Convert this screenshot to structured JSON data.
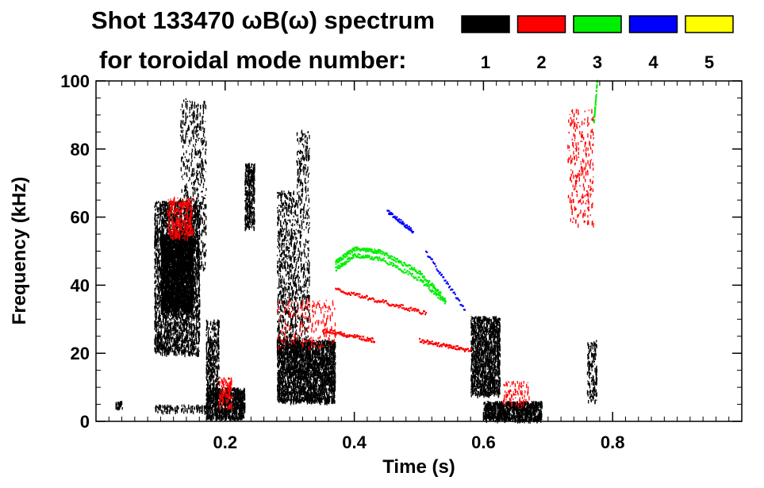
{
  "chart_data": {
    "type": "scatter",
    "title": "Shot 133470 ωB(ω) spectrum",
    "subtitle": "for toroidal mode number:",
    "xlabel": "Time (s)",
    "ylabel": "Frequency (kHz)",
    "xlim": [
      0.0,
      1.0
    ],
    "ylim": [
      0,
      100
    ],
    "x_ticks": [
      0.2,
      0.4,
      0.6,
      0.8
    ],
    "x_tick_labels": [
      "0.2",
      "0.4",
      "0.6",
      "0.8"
    ],
    "y_ticks": [
      0,
      20,
      40,
      60,
      80,
      100
    ],
    "y_tick_labels": [
      "0",
      "20",
      "40",
      "60",
      "80",
      "100"
    ],
    "grid": false,
    "legend_position": "top-right",
    "legend": [
      {
        "label": "1",
        "color": "#000000"
      },
      {
        "label": "2",
        "color": "#ff0000"
      },
      {
        "label": "3",
        "color": "#00ee00"
      },
      {
        "label": "4",
        "color": "#0000ff"
      },
      {
        "label": "5",
        "color": "#ffff00"
      }
    ],
    "series": [
      {
        "name": "1",
        "color": "#000000",
        "regions": [
          {
            "x": [
              0.09,
              0.16
            ],
            "y": [
              20,
              65
            ],
            "density": 3200
          },
          {
            "x": [
              0.1,
              0.15
            ],
            "y": [
              33,
              55
            ],
            "density": 2600
          },
          {
            "x": [
              0.13,
              0.17
            ],
            "y": [
              45,
              95
            ],
            "density": 600
          },
          {
            "x": [
              0.17,
              0.23
            ],
            "y": [
              1,
              10
            ],
            "density": 900
          },
          {
            "x": [
              0.17,
              0.19
            ],
            "y": [
              8,
              30
            ],
            "density": 400
          },
          {
            "x": [
              0.23,
              0.245
            ],
            "y": [
              57,
              76
            ],
            "density": 350
          },
          {
            "x": [
              0.28,
              0.37
            ],
            "y": [
              6,
              24
            ],
            "density": 2600
          },
          {
            "x": [
              0.28,
              0.31
            ],
            "y": [
              20,
              68
            ],
            "density": 700
          },
          {
            "x": [
              0.31,
              0.33
            ],
            "y": [
              20,
              86
            ],
            "density": 450
          },
          {
            "x": [
              0.58,
              0.625
            ],
            "y": [
              8,
              31
            ],
            "density": 1500
          },
          {
            "x": [
              0.6,
              0.69
            ],
            "y": [
              0.5,
              6
            ],
            "density": 1000
          },
          {
            "x": [
              0.76,
              0.775
            ],
            "y": [
              6,
              24
            ],
            "density": 150
          },
          {
            "x": [
              0.03,
              0.04
            ],
            "y": [
              4,
              6
            ],
            "density": 30
          },
          {
            "x": [
              0.09,
              0.17
            ],
            "y": [
              3,
              5
            ],
            "density": 120
          }
        ]
      },
      {
        "name": "2",
        "color": "#ff0000",
        "regions": [
          {
            "x": [
              0.11,
              0.15
            ],
            "y": [
              54,
              66
            ],
            "density": 300
          },
          {
            "x": [
              0.19,
              0.21
            ],
            "y": [
              4,
              13
            ],
            "density": 120
          },
          {
            "x": [
              0.28,
              0.37
            ],
            "y": [
              22,
              36
            ],
            "density": 200
          },
          {
            "x": [
              0.73,
              0.77
            ],
            "y": [
              58,
              92
            ],
            "density": 260
          },
          {
            "x": [
              0.63,
              0.67
            ],
            "y": [
              5,
              12
            ],
            "density": 90
          }
        ],
        "tracks": [
          {
            "x": [
              0.37,
              0.51
            ],
            "y": [
              39,
              32
            ],
            "count": 110
          },
          {
            "x": [
              0.35,
              0.43
            ],
            "y": [
              27,
              24
            ],
            "count": 90
          },
          {
            "x": [
              0.5,
              0.58
            ],
            "y": [
              24,
              21
            ],
            "count": 80
          }
        ]
      },
      {
        "name": "3",
        "color": "#00ee00",
        "tracks": [
          {
            "x": [
              0.37,
              0.4,
              0.44,
              0.5,
              0.54
            ],
            "y": [
              47,
              51,
              50,
              44,
              36
            ],
            "count": 240
          },
          {
            "x": [
              0.37,
              0.4,
              0.44,
              0.5,
              0.54
            ],
            "y": [
              45,
              49,
              48,
              42,
              35
            ],
            "count": 180
          },
          {
            "x": [
              0.77,
              0.775
            ],
            "y": [
              88,
              100
            ],
            "count": 40
          }
        ]
      },
      {
        "name": "4",
        "color": "#0000ff",
        "tracks": [
          {
            "x": [
              0.45,
              0.49
            ],
            "y": [
              62,
              56
            ],
            "count": 60
          },
          {
            "x": [
              0.51,
              0.57
            ],
            "y": [
              50,
              33
            ],
            "count": 45
          }
        ]
      },
      {
        "name": "5",
        "color": "#ffff00",
        "tracks": []
      }
    ]
  }
}
